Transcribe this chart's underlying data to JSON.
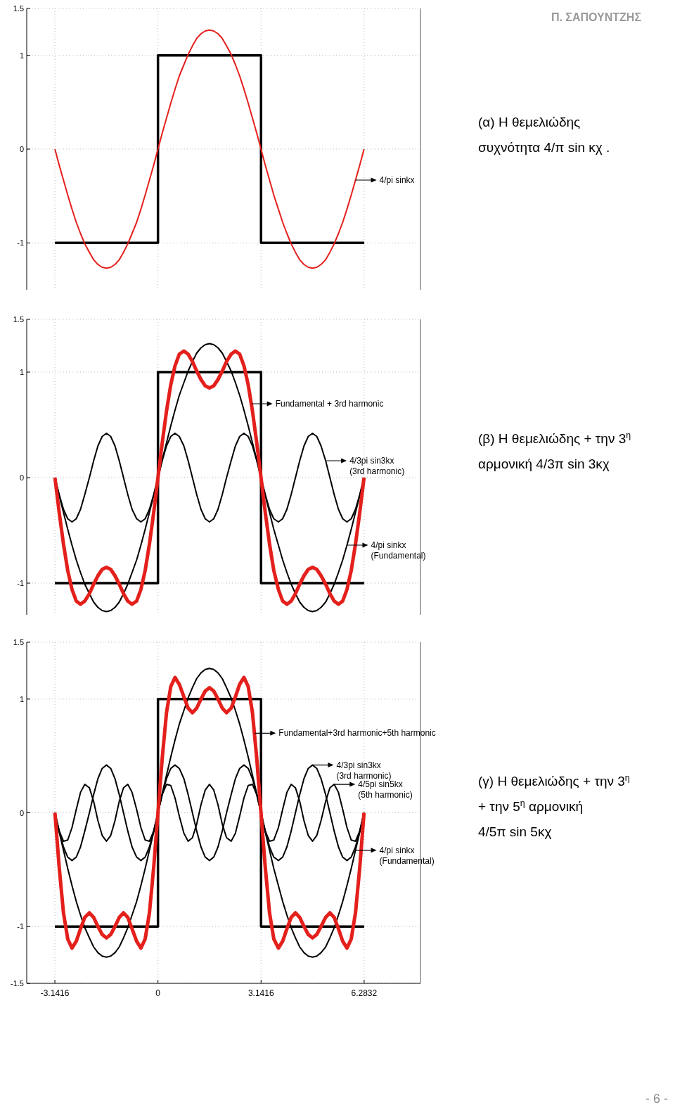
{
  "chart_data": [
    {
      "type": "line",
      "xlim": [
        -4,
        8
      ],
      "ylim": [
        -1.5,
        1.5
      ],
      "xticks": [
        -3.1416,
        0,
        3.1416,
        6.2832
      ],
      "yticks": [
        -1,
        0,
        1,
        1.5
      ],
      "grid": true,
      "tick_labels": "y",
      "x": [
        -3.14,
        -3.01,
        -2.88,
        -2.75,
        -2.62,
        -2.49,
        -2.36,
        -2.23,
        -2.09,
        -1.96,
        -1.83,
        -1.7,
        -1.57,
        -1.44,
        -1.31,
        -1.18,
        -1.05,
        -0.92,
        -0.79,
        -0.65,
        -0.52,
        -0.39,
        -0.26,
        -0.13,
        0,
        0.13,
        0.26,
        0.39,
        0.52,
        0.65,
        0.79,
        0.92,
        1.05,
        1.18,
        1.31,
        1.44,
        1.57,
        1.7,
        1.83,
        1.96,
        2.09,
        2.23,
        2.36,
        2.49,
        2.62,
        2.75,
        2.88,
        3.01,
        3.14,
        3.27,
        3.4,
        3.53,
        3.67,
        3.8,
        3.93,
        4.06,
        4.19,
        4.32,
        4.45,
        4.58,
        4.71,
        4.84,
        4.97,
        5.11,
        5.24,
        5.37,
        5.5,
        5.63,
        5.76,
        5.89,
        6.02,
        6.15,
        6.28
      ],
      "series": [
        {
          "color": "#000000",
          "x": [
            -3.1416,
            0,
            0,
            3.1416,
            3.1416,
            6.2832
          ],
          "values": [
            -1,
            -1,
            1,
            1,
            -1,
            -1
          ]
        },
        {
          "color": "#e4201c",
          "values": [
            0,
            -0.17,
            -0.33,
            -0.49,
            -0.64,
            -0.78,
            -0.9,
            -1.01,
            -1.1,
            -1.18,
            -1.23,
            -1.26,
            -1.27,
            -1.26,
            -1.23,
            -1.18,
            -1.1,
            -1.01,
            -0.9,
            -0.78,
            -0.64,
            -0.49,
            -0.33,
            -0.17,
            0,
            0.17,
            0.33,
            0.49,
            0.64,
            0.78,
            0.9,
            1.01,
            1.1,
            1.18,
            1.23,
            1.26,
            1.27,
            1.26,
            1.23,
            1.18,
            1.1,
            1.01,
            0.9,
            0.78,
            0.64,
            0.49,
            0.33,
            0.17,
            0,
            -0.17,
            -0.33,
            -0.49,
            -0.64,
            -0.78,
            -0.9,
            -1.01,
            -1.1,
            -1.18,
            -1.23,
            -1.26,
            -1.27,
            -1.26,
            -1.23,
            -1.18,
            -1.1,
            -1.01,
            -0.9,
            -0.78,
            -0.64,
            -0.49,
            -0.33,
            -0.17,
            0
          ]
        }
      ],
      "annotations": [
        "Π. ΣΑΠΟΥΝΤΖΗΣ",
        "(α)  Η θεμελιώδης",
        "συχνότητα  4/π sin κχ .",
        {
          "text": "4/pi sinkx",
          "x": 6.02,
          "y": -0.33
        }
      ]
    },
    {
      "type": "line",
      "xlim": [
        -4,
        8
      ],
      "ylim": [
        -1.3,
        1.5
      ],
      "xticks": [
        -3.1416,
        0,
        3.1416,
        6.2832
      ],
      "yticks": [
        -1,
        0,
        1,
        1.5
      ],
      "grid": true,
      "tick_labels": "y",
      "x": [
        -3.14,
        -3.01,
        -2.88,
        -2.75,
        -2.62,
        -2.49,
        -2.36,
        -2.23,
        -2.09,
        -1.96,
        -1.83,
        -1.7,
        -1.57,
        -1.44,
        -1.31,
        -1.18,
        -1.05,
        -0.92,
        -0.79,
        -0.65,
        -0.52,
        -0.39,
        -0.26,
        -0.13,
        0,
        0.13,
        0.26,
        0.39,
        0.52,
        0.65,
        0.79,
        0.92,
        1.05,
        1.18,
        1.31,
        1.44,
        1.57,
        1.7,
        1.83,
        1.96,
        2.09,
        2.23,
        2.36,
        2.49,
        2.62,
        2.75,
        2.88,
        3.01,
        3.14,
        3.27,
        3.4,
        3.53,
        3.67,
        3.8,
        3.93,
        4.06,
        4.19,
        4.32,
        4.45,
        4.58,
        4.71,
        4.84,
        4.97,
        5.11,
        5.24,
        5.37,
        5.5,
        5.63,
        5.76,
        5.89,
        6.02,
        6.15,
        6.28
      ],
      "series": [
        {
          "color": "#000000",
          "x": [
            -3.1416,
            0,
            0,
            3.1416,
            3.1416,
            6.2832
          ],
          "values": [
            -1,
            -1,
            1,
            1,
            -1,
            -1
          ]
        },
        {
          "color": "#000000",
          "values": [
            0,
            -0.17,
            -0.33,
            -0.49,
            -0.64,
            -0.78,
            -0.9,
            -1.01,
            -1.1,
            -1.18,
            -1.23,
            -1.26,
            -1.27,
            -1.26,
            -1.23,
            -1.18,
            -1.1,
            -1.01,
            -0.9,
            -0.78,
            -0.64,
            -0.49,
            -0.33,
            -0.17,
            0,
            0.17,
            0.33,
            0.49,
            0.64,
            0.78,
            0.9,
            1.01,
            1.1,
            1.18,
            1.23,
            1.26,
            1.27,
            1.26,
            1.23,
            1.18,
            1.1,
            1.01,
            0.9,
            0.78,
            0.64,
            0.49,
            0.33,
            0.17,
            0,
            -0.17,
            -0.33,
            -0.49,
            -0.64,
            -0.78,
            -0.9,
            -1.01,
            -1.1,
            -1.18,
            -1.23,
            -1.26,
            -1.27,
            -1.26,
            -1.23,
            -1.18,
            -1.1,
            -1.01,
            -0.9,
            -0.78,
            -0.64,
            -0.49,
            -0.33,
            -0.17,
            0
          ]
        },
        {
          "color": "#000000",
          "values": [
            0,
            -0.16,
            -0.3,
            -0.39,
            -0.42,
            -0.39,
            -0.3,
            -0.16,
            0,
            0.16,
            0.3,
            0.39,
            0.42,
            0.39,
            0.3,
            0.16,
            0,
            -0.16,
            -0.3,
            -0.39,
            -0.42,
            -0.39,
            -0.3,
            -0.16,
            0,
            0.16,
            0.3,
            0.39,
            0.42,
            0.39,
            0.3,
            0.16,
            0,
            -0.16,
            -0.3,
            -0.39,
            -0.42,
            -0.39,
            -0.3,
            -0.16,
            0,
            0.16,
            0.3,
            0.39,
            0.42,
            0.39,
            0.3,
            0.16,
            0,
            -0.16,
            -0.3,
            -0.39,
            -0.42,
            -0.39,
            -0.3,
            -0.16,
            0,
            0.16,
            0.3,
            0.39,
            0.42,
            0.39,
            0.3,
            0.16,
            0,
            -0.16,
            -0.3,
            -0.39,
            -0.42,
            -0.39,
            -0.3,
            -0.16,
            0
          ]
        },
        {
          "color": "#e4201c",
          "values": [
            0,
            -0.33,
            -0.63,
            -0.88,
            -1.06,
            -1.17,
            -1.2,
            -1.17,
            -1.1,
            -1.01,
            -0.93,
            -0.87,
            -0.85,
            -0.87,
            -0.93,
            -1.01,
            -1.1,
            -1.17,
            -1.2,
            -1.17,
            -1.06,
            -0.88,
            -0.63,
            -0.33,
            0,
            0.33,
            0.63,
            0.88,
            1.06,
            1.17,
            1.2,
            1.17,
            1.1,
            1.01,
            0.93,
            0.87,
            0.85,
            0.87,
            0.93,
            1.01,
            1.1,
            1.17,
            1.2,
            1.17,
            1.06,
            0.88,
            0.63,
            0.33,
            0,
            -0.33,
            -0.63,
            -0.88,
            -1.06,
            -1.17,
            -1.2,
            -1.17,
            -1.1,
            -1.01,
            -0.93,
            -0.87,
            -0.85,
            -0.87,
            -0.93,
            -1.01,
            -1.1,
            -1.17,
            -1.2,
            -1.17,
            -1.06,
            -0.88,
            -0.63,
            -0.33,
            0
          ]
        }
      ],
      "annotations": [
        "(β)  Η θεμελιώδης + την 3$^{η}$",
        "αρμονική  4/3π sin 3κχ",
        {
          "text": "Fundamental + 3rd harmonic",
          "x": 2.85,
          "y": 0.7
        },
        {
          "text": "4/3pi sin3kx\n(3rd harmonic)",
          "x": 5.11,
          "y": 0.16
        },
        {
          "text": "4/pi sinkx\n(Fundamental)",
          "x": 5.76,
          "y": -0.64
        }
      ]
    },
    {
      "type": "line",
      "xlim": [
        -4,
        8
      ],
      "ylim": [
        -1.5,
        1.5
      ],
      "xticks": [
        -3.1416,
        0,
        3.1416,
        6.2832
      ],
      "yticks": [
        -1.5,
        -1,
        0,
        1,
        1.5
      ],
      "grid": true,
      "x": [
        -3.14,
        -3.01,
        -2.88,
        -2.75,
        -2.62,
        -2.49,
        -2.36,
        -2.23,
        -2.09,
        -1.96,
        -1.83,
        -1.7,
        -1.57,
        -1.44,
        -1.31,
        -1.18,
        -1.05,
        -0.92,
        -0.79,
        -0.65,
        -0.52,
        -0.39,
        -0.26,
        -0.13,
        0,
        0.13,
        0.26,
        0.39,
        0.52,
        0.65,
        0.79,
        0.92,
        1.05,
        1.18,
        1.31,
        1.44,
        1.57,
        1.7,
        1.83,
        1.96,
        2.09,
        2.23,
        2.36,
        2.49,
        2.62,
        2.75,
        2.88,
        3.01,
        3.14,
        3.27,
        3.4,
        3.53,
        3.67,
        3.8,
        3.93,
        4.06,
        4.19,
        4.32,
        4.45,
        4.58,
        4.71,
        4.84,
        4.97,
        5.11,
        5.24,
        5.37,
        5.5,
        5.63,
        5.76,
        5.89,
        6.02,
        6.15,
        6.28
      ],
      "series": [
        {
          "color": "#000000",
          "x": [
            -3.1416,
            0,
            0,
            3.1416,
            3.1416,
            6.2832
          ],
          "values": [
            -1,
            -1,
            1,
            1,
            -1,
            -1
          ]
        },
        {
          "color": "#000000",
          "values": [
            0,
            -0.17,
            -0.33,
            -0.49,
            -0.64,
            -0.78,
            -0.9,
            -1.01,
            -1.1,
            -1.18,
            -1.23,
            -1.26,
            -1.27,
            -1.26,
            -1.23,
            -1.18,
            -1.1,
            -1.01,
            -0.9,
            -0.78,
            -0.64,
            -0.49,
            -0.33,
            -0.17,
            0,
            0.17,
            0.33,
            0.49,
            0.64,
            0.78,
            0.9,
            1.01,
            1.1,
            1.18,
            1.23,
            1.26,
            1.27,
            1.26,
            1.23,
            1.18,
            1.1,
            1.01,
            0.9,
            0.78,
            0.64,
            0.49,
            0.33,
            0.17,
            0,
            -0.17,
            -0.33,
            -0.49,
            -0.64,
            -0.78,
            -0.9,
            -1.01,
            -1.1,
            -1.18,
            -1.23,
            -1.26,
            -1.27,
            -1.26,
            -1.23,
            -1.18,
            -1.1,
            -1.01,
            -0.9,
            -0.78,
            -0.64,
            -0.49,
            -0.33,
            -0.17,
            0
          ]
        },
        {
          "color": "#000000",
          "values": [
            0,
            -0.16,
            -0.3,
            -0.39,
            -0.42,
            -0.39,
            -0.3,
            -0.16,
            0,
            0.16,
            0.3,
            0.39,
            0.42,
            0.39,
            0.3,
            0.16,
            0,
            -0.16,
            -0.3,
            -0.39,
            -0.42,
            -0.39,
            -0.3,
            -0.16,
            0,
            0.16,
            0.3,
            0.39,
            0.42,
            0.39,
            0.3,
            0.16,
            0,
            -0.16,
            -0.3,
            -0.39,
            -0.42,
            -0.39,
            -0.3,
            -0.16,
            0,
            0.16,
            0.3,
            0.39,
            0.42,
            0.39,
            0.3,
            0.16,
            0,
            -0.16,
            -0.3,
            -0.39,
            -0.42,
            -0.39,
            -0.3,
            -0.16,
            0,
            0.16,
            0.3,
            0.39,
            0.42,
            0.39,
            0.3,
            0.16,
            0,
            -0.16,
            -0.3,
            -0.39,
            -0.42,
            -0.39,
            -0.3,
            -0.16,
            0
          ]
        },
        {
          "color": "#000000",
          "values": [
            0,
            -0.16,
            -0.25,
            -0.24,
            -0.13,
            0.03,
            0.18,
            0.25,
            0.22,
            0.1,
            -0.07,
            -0.2,
            -0.25,
            -0.2,
            -0.07,
            0.1,
            0.22,
            0.25,
            0.18,
            0.03,
            -0.13,
            -0.24,
            -0.25,
            -0.16,
            0,
            0.16,
            0.25,
            0.24,
            0.13,
            -0.03,
            -0.18,
            -0.25,
            -0.22,
            -0.1,
            0.07,
            0.2,
            0.25,
            0.2,
            0.07,
            -0.1,
            -0.22,
            -0.25,
            -0.18,
            -0.03,
            0.13,
            0.24,
            0.25,
            0.16,
            0,
            -0.16,
            -0.25,
            -0.24,
            -0.13,
            0.03,
            0.18,
            0.25,
            0.22,
            0.1,
            -0.07,
            -0.2,
            -0.25,
            -0.2,
            -0.07,
            0.1,
            0.22,
            0.25,
            0.18,
            0.03,
            -0.13,
            -0.24,
            -0.25,
            -0.16,
            0
          ]
        },
        {
          "color": "#e4201c",
          "values": [
            0,
            -0.48,
            -0.88,
            -1.11,
            -1.19,
            -1.13,
            -1.02,
            -0.92,
            -0.88,
            -0.92,
            -1,
            -1.07,
            -1.1,
            -1.07,
            -1,
            -0.92,
            -0.88,
            -0.92,
            -1.02,
            -1.13,
            -1.19,
            -1.11,
            -0.88,
            -0.48,
            0,
            0.48,
            0.88,
            1.11,
            1.19,
            1.13,
            1.02,
            0.92,
            0.88,
            0.92,
            1,
            1.07,
            1.1,
            1.07,
            1,
            0.92,
            0.88,
            0.92,
            1.02,
            1.13,
            1.19,
            1.11,
            0.88,
            0.48,
            0,
            -0.48,
            -0.88,
            -1.11,
            -1.19,
            -1.13,
            -1.02,
            -0.92,
            -0.88,
            -0.92,
            -1,
            -1.07,
            -1.1,
            -1.07,
            -1,
            -0.92,
            -0.88,
            -0.92,
            -1.02,
            -1.13,
            -1.19,
            -1.11,
            -0.88,
            -0.48,
            0
          ]
        }
      ],
      "annotations": [
        "(γ)  Η θεμελιώδης + την 3$^{η}$",
        "+  την 5$^{η}$ αρμονική",
        "4/5π sin 5κχ",
        {
          "text": "Fundamental+3rd harmonic+5th harmonic",
          "x": 2.95,
          "y": 0.7
        },
        {
          "text": "4/3pi sin3kx\n(3rd harmonic)",
          "x": 4.71,
          "y": 0.42
        },
        {
          "text": "4/5pi sin5kx\n(5th harmonic)",
          "x": 5.37,
          "y": 0.25
        },
        {
          "text": "4/pi sinkx\n(Fundamental)",
          "x": 6.02,
          "y": -0.33
        },
        "- 6 -"
      ]
    }
  ]
}
